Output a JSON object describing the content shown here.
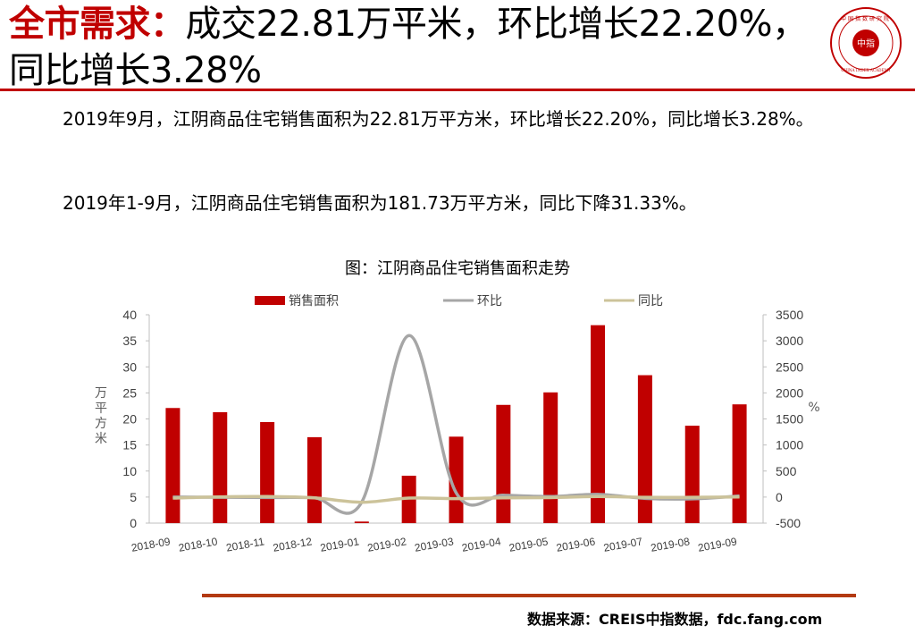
{
  "header": {
    "title_highlight": "全市需求：",
    "title_line1_rest": "成交22.81万平米，环比增长22.20%，",
    "title_line2": "同比增长3.28%"
  },
  "logo": {
    "center_text": "中指",
    "ring_text": "中国指数研究院",
    "english_text": "CHINA INDEX ACADEMY",
    "color": "#c00000"
  },
  "body": {
    "paragraph1": "2019年9月，江阴商品住宅销售面积为22.81万平方米，环比增长22.20%，同比增长3.28%。",
    "paragraph2": "2019年1-9月，江阴商品住宅销售面积为181.73万平方米，同比下降31.33%。"
  },
  "chart_title": "图：江阴商品住宅销售面积走势",
  "chart_data": {
    "type": "bar",
    "categories": [
      "2018-09",
      "2018-10",
      "2018-11",
      "2018-12",
      "2019-01",
      "2019-02",
      "2019-03",
      "2019-04",
      "2019-05",
      "2019-06",
      "2019-07",
      "2019-08",
      "2019-09"
    ],
    "series": [
      {
        "name": "销售面积",
        "type": "bar",
        "axis": "left",
        "color": "#c00000",
        "values": [
          22.1,
          21.3,
          19.4,
          16.5,
          0.3,
          9.1,
          16.6,
          22.7,
          25.1,
          38.0,
          28.4,
          18.7,
          22.8
        ]
      },
      {
        "name": "环比",
        "type": "line",
        "axis": "right",
        "color": "#a6a6a6",
        "values": [
          0,
          -4,
          -9,
          -15,
          -98,
          3100,
          82,
          37,
          11,
          51,
          -25,
          -34,
          22
        ]
      },
      {
        "name": "同比",
        "type": "line",
        "axis": "right",
        "color": "#ccc39a",
        "values": [
          -20,
          5,
          10,
          -15,
          -100,
          -20,
          -30,
          -15,
          -10,
          10,
          -5,
          -5,
          3
        ]
      }
    ],
    "ylabel": "万平方米",
    "y2label": "%",
    "ylim": [
      0,
      40
    ],
    "y2lim": [
      -500,
      3500
    ],
    "yticks": [
      0,
      5,
      10,
      15,
      20,
      25,
      30,
      35,
      40
    ],
    "y2ticks": [
      -500,
      0,
      500,
      1000,
      1500,
      2000,
      2500,
      3000,
      3500
    ],
    "legend_position": "top",
    "grid": false
  },
  "source": "数据来源：CREIS中指数据，fdc.fang.com"
}
